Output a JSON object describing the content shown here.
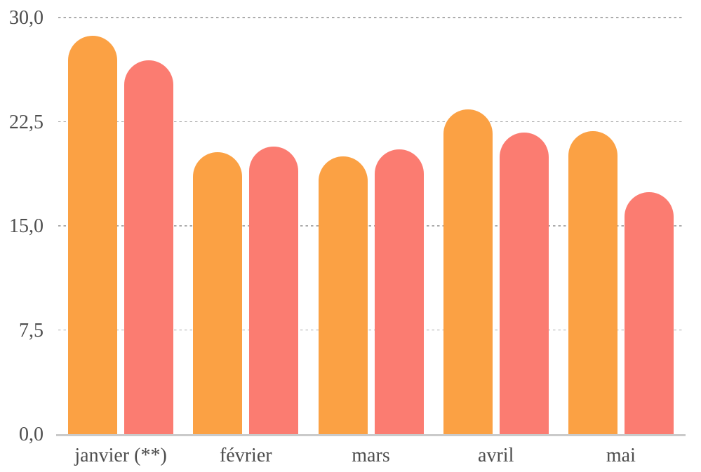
{
  "chart_data": {
    "type": "bar",
    "title": "",
    "xlabel": "",
    "ylabel": "",
    "categories": [
      "janvier (**)",
      "février",
      "mars",
      "avril",
      "mai"
    ],
    "series": [
      {
        "name": "orange",
        "color": "#FBA144",
        "values": [
          28.7,
          20.3,
          20.0,
          23.4,
          21.8
        ]
      },
      {
        "name": "red",
        "color": "#FB7C71",
        "values": [
          26.9,
          20.7,
          20.5,
          21.7,
          17.4
        ]
      }
    ],
    "ylim": [
      0,
      30
    ],
    "yticks": [
      {
        "label": "0,0",
        "value": 0
      },
      {
        "label": "7,5",
        "value": 7.5
      },
      {
        "label": "15,0",
        "value": 15
      },
      {
        "label": "22,5",
        "value": 22.5
      },
      {
        "label": "30,0",
        "value": 30
      }
    ],
    "grid": "horizontal-dashed",
    "legend": "none"
  },
  "colors": {
    "background": "#ffffff",
    "gridline": "#ababab",
    "axis_line": "#cacaca",
    "label_text": "#4e4e4e",
    "bar_orange": "#FBA144",
    "bar_red": "#FB7C71"
  }
}
